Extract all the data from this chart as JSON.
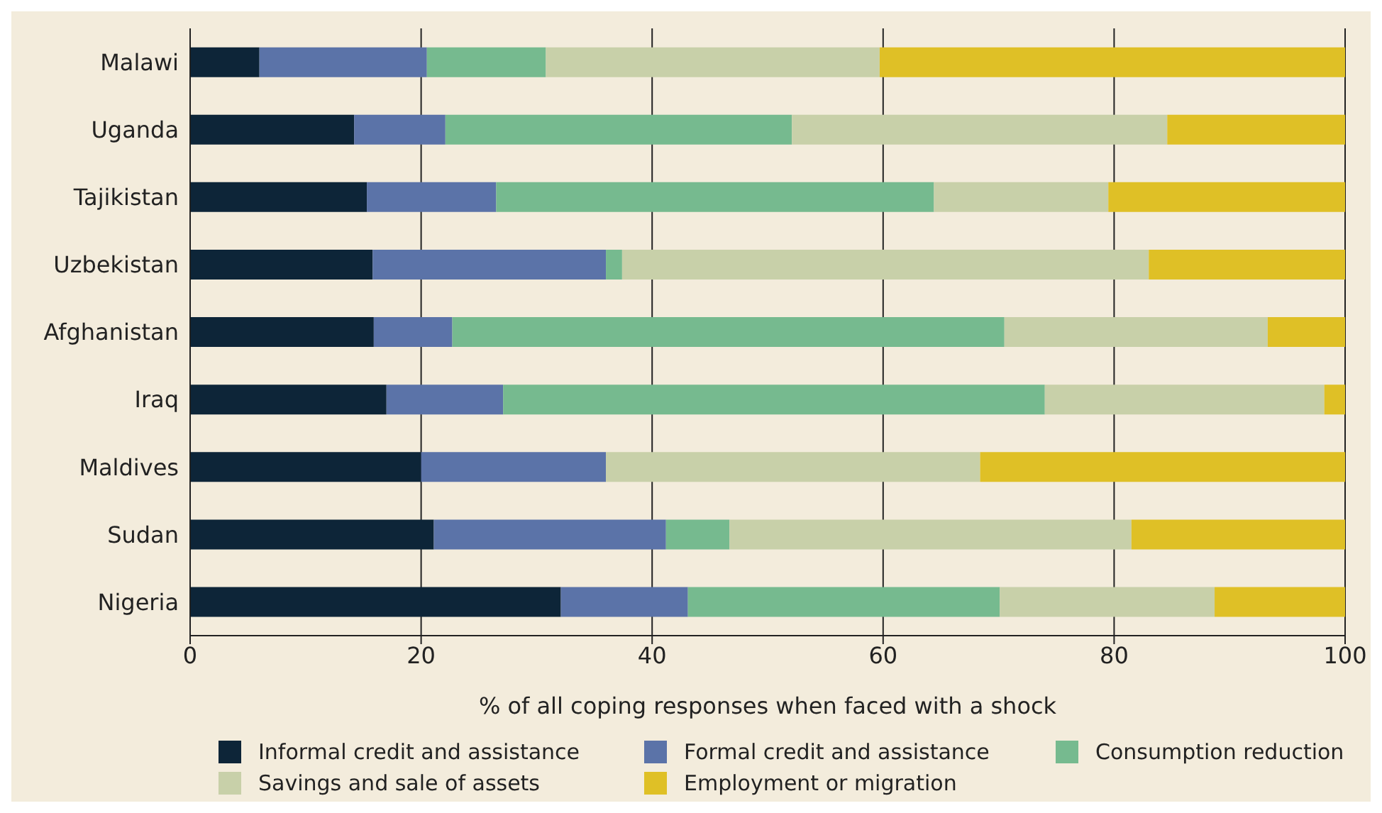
{
  "chart_data": {
    "type": "bar",
    "orientation": "horizontal",
    "stacked": true,
    "xlabel": "% of all coping responses when faced with a shock",
    "categories": [
      "Malawi",
      "Uganda",
      "Tajikistan",
      "Uzbekistan",
      "Afghanistan",
      "Iraq",
      "Maldives",
      "Sudan",
      "Nigeria"
    ],
    "series": [
      {
        "name": "Informal credit and assistance",
        "color": "#0d2538",
        "values": [
          6.0,
          14.2,
          15.3,
          15.8,
          15.9,
          17.0,
          20.0,
          21.1,
          32.1
        ]
      },
      {
        "name": "Formal credit and assistance",
        "color": "#5b73a8",
        "values": [
          14.5,
          7.9,
          11.2,
          20.2,
          6.8,
          10.1,
          16.0,
          20.1,
          11.0
        ]
      },
      {
        "name": "Consumption reduction",
        "color": "#76ba8f",
        "values": [
          10.3,
          30.0,
          37.9,
          1.4,
          47.8,
          46.9,
          0,
          5.5,
          27.0
        ]
      },
      {
        "name": "Savings and sale of assets",
        "color": "#c8d0a9",
        "values": [
          28.9,
          32.5,
          15.1,
          45.6,
          22.8,
          24.2,
          32.4,
          34.8,
          18.6
        ]
      },
      {
        "name": "Employment or migration",
        "color": "#dfc026",
        "values": [
          40.3,
          15.4,
          20.5,
          17.0,
          6.7,
          1.8,
          31.6,
          18.5,
          11.3
        ]
      }
    ],
    "xlim": [
      0,
      100
    ],
    "xticks": [
      0,
      20,
      40,
      60,
      80,
      100
    ],
    "grid": "x",
    "legend": "bottom"
  }
}
